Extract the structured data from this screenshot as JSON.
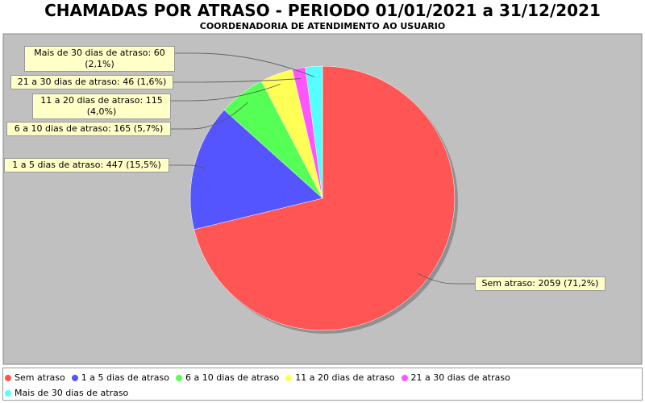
{
  "chart_data": {
    "type": "pie",
    "title": "CHAMADAS POR ATRASO - PERIODO 01/01/2021 a 31/12/2021",
    "subtitle": "COORDENADORIA DE ATENDIMENTO AO USUARIO",
    "categories": [
      "Sem atraso",
      "1 a 5 dias de atraso",
      "6 a 10 dias de atraso",
      "11 a 20 dias de atraso",
      "21 a 30 dias de atraso",
      "Mais de 30 dias de atraso"
    ],
    "values": [
      2059,
      447,
      165,
      115,
      46,
      60
    ],
    "value_labels": [
      "Sem atraso: 2059 (71,2%)",
      "1 a 5 dias de atraso: 447 (15,5%)",
      "6 a 10 dias de atraso: 165 (5,7%)",
      "11 a 20 dias de atraso: 115 (4,0%)",
      "21 a 30 dias de atraso: 46 (1,6%)",
      "Mais de 30 dias de atraso: 60 (2,1%)"
    ],
    "colors": [
      "#ff5555",
      "#5555ff",
      "#55ff55",
      "#ffff55",
      "#ff55ff",
      "#55ffff"
    ],
    "legend": "bottom"
  }
}
